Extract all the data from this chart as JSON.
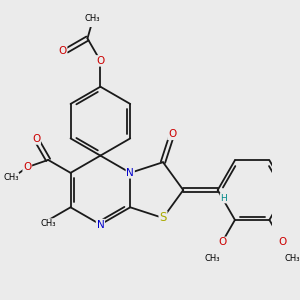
{
  "bg_color": "#ebebeb",
  "bond_color": "#1a1a1a",
  "N_color": "#0000cc",
  "O_color": "#cc0000",
  "S_color": "#aaaa00",
  "H_color": "#008888",
  "bond_lw": 1.3,
  "dbo": 0.06,
  "fs": 7.5,
  "xlim": [
    -1.0,
    5.5
  ],
  "ylim": [
    -0.5,
    5.8
  ]
}
